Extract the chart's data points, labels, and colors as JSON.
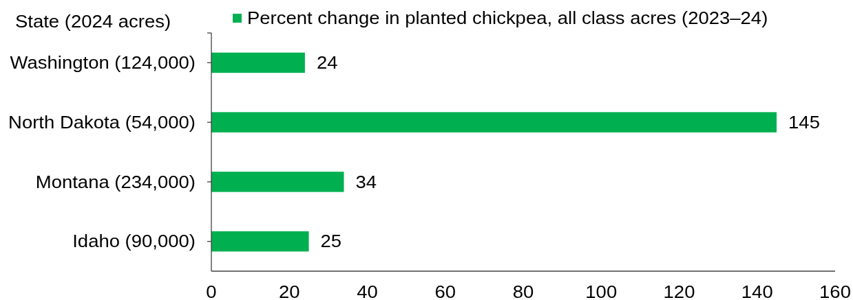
{
  "chart_data": {
    "type": "bar",
    "orientation": "horizontal",
    "ylabel": "State (2024 acres)",
    "categories": [
      "Washington (124,000)",
      "North Dakota (54,000)",
      "Montana (234,000)",
      "Idaho (90,000)"
    ],
    "series": [
      {
        "name": "Percent change in planted chickpea, all class acres (2023–24)",
        "color": "#00b050",
        "values": [
          24,
          145,
          34,
          25
        ]
      }
    ],
    "xlim": [
      0,
      160
    ],
    "xticks": [
      0,
      20,
      40,
      60,
      80,
      100,
      120,
      140,
      160
    ],
    "data_labels": true,
    "legend": "top"
  }
}
